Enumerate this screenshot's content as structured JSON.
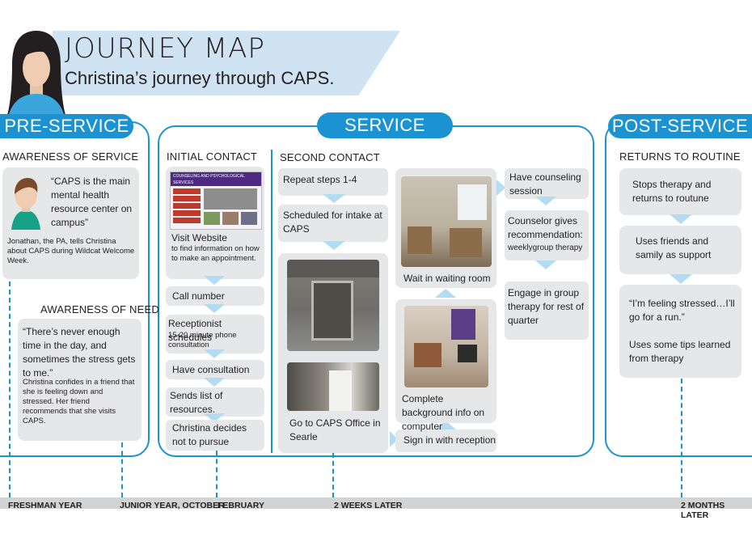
{
  "title": "JOURNEY MAP",
  "subtitle": "Christina’s journey through CAPS.",
  "phases": {
    "pre": "PRE-SERVICE",
    "service": "SERVICE",
    "post": "POST-SERVICE"
  },
  "pre_service": {
    "awareness_service_header": "AWARENESS OF SERVICE",
    "quote1": "“CAPS is the main mental health resource center on campus”",
    "note1": "Jonathan, the PA, tells Christina about CAPS during Wildcat Welcome Week.",
    "awareness_need_header": "AWARENESS OF NEED",
    "quote2": "“There’s never enough time in the day, and sometimes the stress gets to me.”",
    "note2": "Christina confides in a friend that she is feeling down and stressed. Her friend recommends that she visits CAPS."
  },
  "service": {
    "initial_header": "INITIAL CONTACT",
    "website_banner": "COUNSELING AND PSYCHOLOGICAL SERVICES",
    "visit_website": "Visit Website",
    "visit_website_sub": "to find information on how to make an appointment.",
    "call_number": "Call number",
    "receptionist": "Receptionist schedules",
    "receptionist_sub": "15-20 minute phone consultation",
    "have_consultation": "Have consultation",
    "sends_list": "Sends list of resources.",
    "decides": "Christina decides not to pursue",
    "second_header": "SECOND CONTACT",
    "repeat_steps": "Repeat steps 1-4",
    "scheduled": "Scheduled for intake at CAPS",
    "go_to_caps": "Go to CAPS Office in Searle",
    "sign_in": "Sign in with reception",
    "complete_bg": "Complete background info on computer",
    "wait_room": "Wait in waiting room",
    "have_counseling": "Have counseling session",
    "counselor_gives": "Counselor gives recommendation:",
    "counselor_sub": "weeklygroup therapy",
    "engage_group": "Engage in group therapy for rest of quarter"
  },
  "post_service": {
    "header": "RETURNS TO ROUTINE",
    "stops": "Stops therapy and returns to routune",
    "friends": "Uses friends and samily as support",
    "quote": "“I’m feeling stressed…I’ll go for a run.”",
    "tips": "Uses some tips learned from therapy"
  },
  "timeline": {
    "labels": [
      "FRESHMAN YEAR",
      "JUNIOR YEAR, OCTOBER",
      "FEBRUARY",
      "2 WEEKS LATER",
      "2 MONTHS LATER"
    ]
  },
  "colors": {
    "accent": "#1b93d2",
    "card": "#e6e7e8",
    "banner": "#cfe3f2",
    "timeline": "#d1d3d4"
  }
}
